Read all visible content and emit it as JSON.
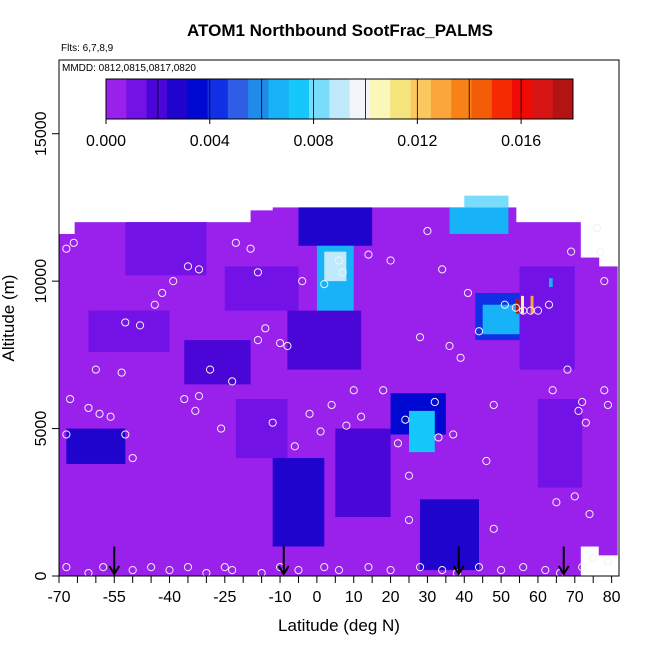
{
  "chart_data": {
    "type": "heatmap",
    "title": "ATOM1 Northbound SootFrac_PALMS",
    "flights_label": "Flts: 6,7,8,9",
    "dates_label": "MMDD: 0812,0815,0817,0820",
    "xlabel": "Latitude (deg N)",
    "ylabel": "Altitude (m)",
    "xlim": [
      -70,
      82
    ],
    "ylim": [
      0,
      17500
    ],
    "x_ticks": [
      "-70",
      "-55",
      "-40",
      "-25",
      "-10",
      "0",
      "10",
      "20",
      "30",
      "40",
      "50",
      "60",
      "70",
      "80"
    ],
    "x_tick_values": [
      -70,
      -55,
      -40,
      -25,
      -10,
      0,
      10,
      20,
      30,
      40,
      50,
      60,
      70,
      80
    ],
    "x_minor_step": 5,
    "y_ticks": [
      "0",
      "5000",
      "10000",
      "15000"
    ],
    "y_tick_values": [
      0,
      5000,
      10000,
      15000
    ],
    "colorbar": {
      "min": 0,
      "max": 0.018,
      "tick_labels": [
        "0.000",
        "0.004",
        "0.008",
        "0.012",
        "0.016"
      ],
      "tick_values": [
        0,
        0.004,
        0.008,
        0.012,
        0.016
      ],
      "colors": [
        "#9a20ec",
        "#7212e6",
        "#4a06d6",
        "#1e04cc",
        "#0008d2",
        "#1130e6",
        "#2f5de6",
        "#208ae9",
        "#17b2f8",
        "#15c7fb",
        "#7adcfb",
        "#c0e9fb",
        "#f2f6fb",
        "#fbf7b8",
        "#f5e37c",
        "#fbc85f",
        "#faa63d",
        "#f98218",
        "#f45d08",
        "#f42a05",
        "#f00a05",
        "#d61414",
        "#b21414"
      ]
    },
    "profile_columns": [
      {
        "lat": -68.5,
        "bottom": 0,
        "top": 11600
      },
      {
        "lat": -63,
        "bottom": 0,
        "top": 12000
      },
      {
        "lat": -56,
        "bottom": 0,
        "top": 12000
      },
      {
        "lat": -50,
        "bottom": 0,
        "top": 12000
      },
      {
        "lat": -45,
        "bottom": 0,
        "top": 12000
      },
      {
        "lat": -39,
        "bottom": 0,
        "top": 12000
      },
      {
        "lat": -33,
        "bottom": 0,
        "top": 12000
      },
      {
        "lat": -27,
        "bottom": 0,
        "top": 12000
      },
      {
        "lat": -21,
        "bottom": 0,
        "top": 12000
      },
      {
        "lat": -15,
        "bottom": 0,
        "top": 12400
      },
      {
        "lat": -9,
        "bottom": 0,
        "top": 12500
      },
      {
        "lat": -3,
        "bottom": 0,
        "top": 12500
      },
      {
        "lat": 3,
        "bottom": 0,
        "top": 12500
      },
      {
        "lat": 9,
        "bottom": 0,
        "top": 12500
      },
      {
        "lat": 15,
        "bottom": 0,
        "top": 12500
      },
      {
        "lat": 21,
        "bottom": 0,
        "top": 12500
      },
      {
        "lat": 27,
        "bottom": 0,
        "top": 12500
      },
      {
        "lat": 33,
        "bottom": 0,
        "top": 12500
      },
      {
        "lat": 39,
        "bottom": 0,
        "top": 12500
      },
      {
        "lat": 45,
        "bottom": 0,
        "top": 12500
      },
      {
        "lat": 51,
        "bottom": 0,
        "top": 12500
      },
      {
        "lat": 57,
        "bottom": 0,
        "top": 12000
      },
      {
        "lat": 63,
        "bottom": 0,
        "top": 12000
      },
      {
        "lat": 69,
        "bottom": 0,
        "top": 12000
      },
      {
        "lat": 74,
        "bottom": 1000,
        "top": 10800
      },
      {
        "lat": 79,
        "bottom": 700,
        "top": 10500
      }
    ],
    "background_value": 0.0002,
    "features": [
      {
        "lat0": -68,
        "lat1": -52,
        "alt0": 3800,
        "alt1": 5000,
        "value": 0.0025
      },
      {
        "lat0": -62,
        "lat1": -40,
        "alt0": 7600,
        "alt1": 9000,
        "value": 0.0015
      },
      {
        "lat0": -52,
        "lat1": -30,
        "alt0": 10200,
        "alt1": 12000,
        "value": 0.0012
      },
      {
        "lat0": -36,
        "lat1": -18,
        "alt0": 6500,
        "alt1": 8000,
        "value": 0.002
      },
      {
        "lat0": -25,
        "lat1": -5,
        "alt0": 9000,
        "alt1": 10500,
        "value": 0.0015
      },
      {
        "lat0": -22,
        "lat1": -8,
        "alt0": 4000,
        "alt1": 6000,
        "value": 0.0015
      },
      {
        "lat0": -12,
        "lat1": 2,
        "alt0": 1000,
        "alt1": 4000,
        "value": 0.0025
      },
      {
        "lat0": -8,
        "lat1": 12,
        "alt0": 7000,
        "alt1": 9000,
        "value": 0.0022
      },
      {
        "lat0": -5,
        "lat1": 15,
        "alt0": 11200,
        "alt1": 12500,
        "value": 0.003
      },
      {
        "lat0": 0,
        "lat1": 10,
        "alt0": 9000,
        "alt1": 11200,
        "value": 0.0065
      },
      {
        "lat0": 2,
        "lat1": 8,
        "alt0": 10000,
        "alt1": 11000,
        "value": 0.009
      },
      {
        "lat0": 5,
        "lat1": 20,
        "alt0": 2000,
        "alt1": 5000,
        "value": 0.0022
      },
      {
        "lat0": 20,
        "lat1": 35,
        "alt0": 4800,
        "alt1": 6200,
        "value": 0.0035
      },
      {
        "lat0": 25,
        "lat1": 32,
        "alt0": 4200,
        "alt1": 5600,
        "value": 0.0072
      },
      {
        "lat0": 28,
        "lat1": 44,
        "alt0": 200,
        "alt1": 2600,
        "value": 0.0025
      },
      {
        "lat0": 36,
        "lat1": 52,
        "alt0": 11600,
        "alt1": 12500,
        "value": 0.007
      },
      {
        "lat0": 40,
        "lat1": 52,
        "alt0": 12500,
        "alt1": 12900,
        "value": 0.0085
      },
      {
        "lat0": 43,
        "lat1": 58,
        "alt0": 8000,
        "alt1": 9600,
        "value": 0.0042
      },
      {
        "lat0": 45,
        "lat1": 56,
        "alt0": 8200,
        "alt1": 9200,
        "value": 0.0068
      },
      {
        "lat0": 55,
        "lat1": 70,
        "alt0": 7000,
        "alt1": 10500,
        "value": 0.0015
      },
      {
        "lat0": 60,
        "lat1": 72,
        "alt0": 3000,
        "alt1": 6000,
        "value": 0.0014
      },
      {
        "lat0": 54,
        "lat1": 55.2,
        "alt0": 8900,
        "alt1": 9400,
        "value": 0.0175
      },
      {
        "lat0": 55.4,
        "lat1": 56.2,
        "alt0": 8900,
        "alt1": 9500,
        "value": 0.0108
      },
      {
        "lat0": 58,
        "lat1": 58.8,
        "alt0": 8900,
        "alt1": 9500,
        "value": 0.0126
      },
      {
        "lat0": 63,
        "lat1": 64,
        "alt0": 9800,
        "alt1": 10100,
        "value": 0.007
      }
    ],
    "sample_points": [
      [
        -68,
        11100
      ],
      [
        -67,
        6000
      ],
      [
        -68,
        4800
      ],
      [
        -68,
        300
      ],
      [
        -66,
        11300
      ],
      [
        -62,
        5700
      ],
      [
        -60,
        7000
      ],
      [
        -59,
        5500
      ],
      [
        -56,
        5400
      ],
      [
        -53,
        6900
      ],
      [
        -52,
        8600
      ],
      [
        -48,
        8500
      ],
      [
        -52,
        4800
      ],
      [
        -50,
        4000
      ],
      [
        -44,
        9200
      ],
      [
        -42,
        9600
      ],
      [
        -39,
        10000
      ],
      [
        -35,
        10500
      ],
      [
        -32,
        10400
      ],
      [
        -36,
        6000
      ],
      [
        -33,
        5600
      ],
      [
        -32,
        6100
      ],
      [
        -29,
        7000
      ],
      [
        -26,
        5000
      ],
      [
        -23,
        6600
      ],
      [
        -22,
        11300
      ],
      [
        -18,
        11100
      ],
      [
        -16,
        10300
      ],
      [
        -16,
        8000
      ],
      [
        -14,
        8400
      ],
      [
        -12,
        5200
      ],
      [
        -10,
        7900
      ],
      [
        -8,
        7800
      ],
      [
        -4,
        10000
      ],
      [
        -6,
        4400
      ],
      [
        -2,
        5500
      ],
      [
        2,
        9900
      ],
      [
        1,
        4900
      ],
      [
        4,
        5800
      ],
      [
        6,
        10700
      ],
      [
        7,
        10300
      ],
      [
        8,
        5100
      ],
      [
        10,
        6300
      ],
      [
        12,
        5400
      ],
      [
        14,
        10900
      ],
      [
        18,
        6300
      ],
      [
        20,
        10700
      ],
      [
        22,
        4500
      ],
      [
        24,
        5300
      ],
      [
        25,
        3400
      ],
      [
        25,
        1900
      ],
      [
        28,
        8100
      ],
      [
        30,
        11700
      ],
      [
        32,
        5900
      ],
      [
        33,
        4700
      ],
      [
        34,
        10400
      ],
      [
        36,
        7800
      ],
      [
        37,
        4800
      ],
      [
        39,
        7400
      ],
      [
        41,
        9600
      ],
      [
        44,
        8300
      ],
      [
        46,
        3900
      ],
      [
        48,
        5800
      ],
      [
        48,
        1600
      ],
      [
        51,
        9200
      ],
      [
        54,
        9100
      ],
      [
        56,
        9000
      ],
      [
        58,
        9000
      ],
      [
        60,
        9000
      ],
      [
        63,
        9200
      ],
      [
        64,
        6300
      ],
      [
        65,
        2500
      ],
      [
        68,
        7000
      ],
      [
        69,
        11000
      ],
      [
        70,
        2700
      ],
      [
        71,
        5600
      ],
      [
        72,
        5900
      ],
      [
        73,
        5200
      ],
      [
        74,
        2100
      ],
      [
        76,
        11800
      ],
      [
        77,
        11000
      ],
      [
        78,
        10000
      ],
      [
        78,
        6300
      ],
      [
        79,
        5800
      ],
      [
        -62,
        100
      ],
      [
        -58,
        300
      ],
      [
        -50,
        200
      ],
      [
        -45,
        300
      ],
      [
        -40,
        200
      ],
      [
        -35,
        300
      ],
      [
        -30,
        100
      ],
      [
        -25,
        300
      ],
      [
        -23,
        200
      ],
      [
        -15,
        100
      ],
      [
        -10,
        300
      ],
      [
        -5,
        200
      ],
      [
        2,
        300
      ],
      [
        6,
        200
      ],
      [
        14,
        300
      ],
      [
        20,
        200
      ],
      [
        28,
        300
      ],
      [
        34,
        200
      ],
      [
        38,
        100
      ],
      [
        44,
        300
      ],
      [
        50,
        200
      ],
      [
        56,
        300
      ],
      [
        62,
        200
      ],
      [
        66,
        100
      ],
      [
        72,
        300
      ],
      [
        75,
        600
      ],
      [
        79,
        500
      ]
    ],
    "leg_markers": [
      -55,
      -9,
      38.5,
      67
    ]
  }
}
